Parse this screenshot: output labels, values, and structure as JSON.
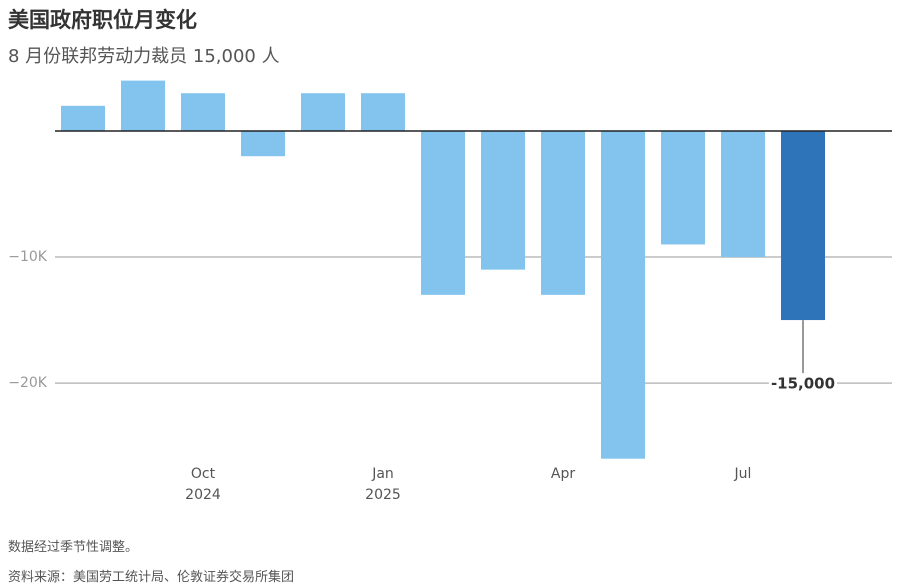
{
  "chart_data": {
    "type": "bar",
    "title": "美国政府职位月变化",
    "subtitle": "8 月份联邦劳动力裁员 15,000 人",
    "categories": [
      null,
      null,
      "Oct 2024",
      null,
      null,
      "Jan 2025",
      null,
      null,
      "Apr",
      null,
      null,
      "Jul",
      null
    ],
    "values": [
      2000,
      4000,
      3000,
      -2000,
      3000,
      3000,
      -13000,
      -11000,
      -13000,
      -26000,
      -9000,
      -10000,
      -15000
    ],
    "value_labels": [
      null,
      null,
      null,
      null,
      null,
      null,
      null,
      null,
      null,
      null,
      null,
      null,
      "-15,000"
    ],
    "colors": [
      "#82c4ee",
      "#82c4ee",
      "#82c4ee",
      "#82c4ee",
      "#82c4ee",
      "#82c4ee",
      "#82c4ee",
      "#82c4ee",
      "#82c4ee",
      "#82c4ee",
      "#82c4ee",
      "#82c4ee",
      "#2e74b8"
    ],
    "ylim": [
      -26500,
      5000
    ],
    "yticks": [
      {
        "value": -10000,
        "label": "−10K"
      },
      {
        "value": -20000,
        "label": "−20K"
      }
    ],
    "grid": true,
    "note": "数据经过季节性调整。",
    "source": "资料来源：美国劳工统计局、伦敦证券交易所集团"
  }
}
